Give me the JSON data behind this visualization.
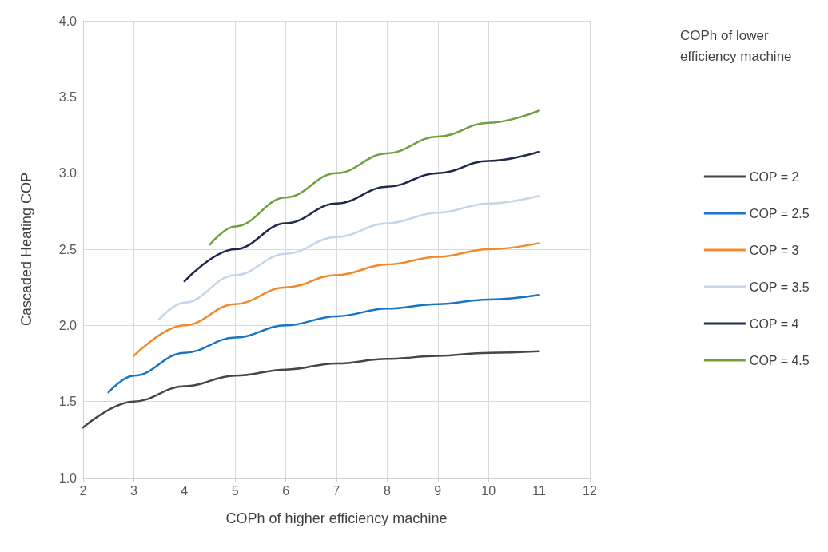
{
  "chart_data": {
    "type": "line",
    "xlabel": "COPh of higher efficiency machine",
    "ylabel": "Cascaded Heating COP",
    "legend_title": "COPh of lower efficiency machine",
    "legend": "right",
    "grid": true,
    "marker": "none",
    "line_style": "solid",
    "xlim": [
      2,
      12
    ],
    "xticks": [
      2,
      3,
      4,
      5,
      6,
      7,
      8,
      9,
      10,
      11,
      12
    ],
    "ylim": [
      1,
      4
    ],
    "yticks": [
      {
        "value": 1,
        "label": "1.0"
      },
      {
        "value": 1.5,
        "label": "1.5"
      },
      {
        "value": 2,
        "label": "2.0"
      },
      {
        "value": 2.5,
        "label": "2.5"
      },
      {
        "value": 3,
        "label": "3.0"
      },
      {
        "value": 3.5,
        "label": "3.5"
      },
      {
        "value": 4,
        "label": "4.0"
      }
    ],
    "series": [
      {
        "name": "COP = 2",
        "color": "#404848",
        "x": [
          2,
          3,
          4,
          5,
          6,
          7,
          8,
          9,
          10,
          11
        ],
        "values": [
          1.33,
          1.5,
          1.6,
          1.67,
          1.71,
          1.75,
          1.78,
          1.8,
          1.82,
          1.83
        ]
      },
      {
        "name": "COP = 2.5",
        "color": "#1a75c4",
        "x": [
          2.5,
          3,
          4,
          5,
          6,
          7,
          8,
          9,
          10,
          11
        ],
        "values": [
          1.56,
          1.67,
          1.82,
          1.92,
          2.0,
          2.06,
          2.11,
          2.14,
          2.17,
          2.2
        ]
      },
      {
        "name": "COP = 3",
        "color": "#f08a2a",
        "x": [
          3,
          4,
          5,
          6,
          7,
          8,
          9,
          10,
          11
        ],
        "values": [
          1.8,
          2.0,
          2.14,
          2.25,
          2.33,
          2.4,
          2.45,
          2.5,
          2.54
        ]
      },
      {
        "name": "COP = 3.5",
        "color": "#c5d5ea",
        "x": [
          3.5,
          4,
          5,
          6,
          7,
          8,
          9,
          10,
          11
        ],
        "values": [
          2.04,
          2.15,
          2.33,
          2.47,
          2.58,
          2.67,
          2.74,
          2.8,
          2.85
        ]
      },
      {
        "name": "COP = 4",
        "color": "#1f2a4a",
        "x": [
          4,
          5,
          6,
          7,
          8,
          9,
          10,
          11
        ],
        "values": [
          2.29,
          2.5,
          2.67,
          2.8,
          2.91,
          3.0,
          3.08,
          3.14
        ]
      },
      {
        "name": "COP = 4.5",
        "color": "#70a040",
        "x": [
          4.5,
          5,
          6,
          7,
          8,
          9,
          10,
          11
        ],
        "values": [
          2.53,
          2.65,
          2.84,
          3.0,
          3.13,
          3.24,
          3.33,
          3.41
        ]
      }
    ]
  }
}
